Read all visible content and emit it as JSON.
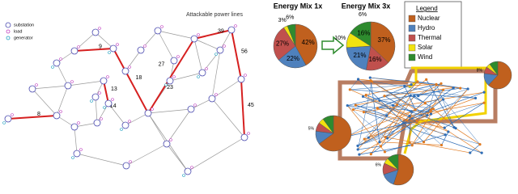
{
  "network": {
    "title": "Attackable power lines",
    "legend": [
      "substation",
      "load",
      "generator"
    ],
    "edge_labels": [
      9,
      27,
      39,
      56,
      18,
      23,
      13,
      45,
      8,
      14
    ]
  },
  "energy_mix": {
    "legend_title": "Legend",
    "legend": [
      {
        "name": "Nuclear",
        "color": "#c0601e"
      },
      {
        "name": "Hydro",
        "color": "#4f81bd"
      },
      {
        "name": "Thermal",
        "color": "#c0504d"
      },
      {
        "name": "Solar",
        "color": "#f2e30f"
      },
      {
        "name": "Wind",
        "color": "#2e8b2e"
      }
    ],
    "pies": [
      {
        "title": "Energy Mix 1x",
        "slices": [
          {
            "name": "Nuclear",
            "color": "#c0601e",
            "value": 42,
            "value_label": "42%"
          },
          {
            "name": "Hydro",
            "color": "#4f81bd",
            "value": 22,
            "value_label": "22%"
          },
          {
            "name": "Thermal",
            "color": "#c0504d",
            "value": 27,
            "value_label": "27%"
          },
          {
            "name": "Solar",
            "color": "#f2e30f",
            "value": 3,
            "value_label": "3%"
          },
          {
            "name": "Wind",
            "color": "#2e8b2e",
            "value": 6,
            "value_label": "6%"
          }
        ]
      },
      {
        "title": "Energy Mix 3x",
        "slices": [
          {
            "name": "Nuclear",
            "color": "#c0601e",
            "value": 37,
            "value_label": "37%"
          },
          {
            "name": "Thermal",
            "color": "#c0504d",
            "value": 16,
            "value_label": "16%"
          },
          {
            "name": "Hydro",
            "color": "#4f81bd",
            "value": 21,
            "value_label": "21%"
          },
          {
            "name": "Solar",
            "color": "#f2e30f",
            "value": 10,
            "value_label": "10%"
          },
          {
            "name": "Wind",
            "color": "#2e8b2e",
            "value": 16,
            "value_label": "16%"
          }
        ]
      }
    ],
    "annotation": "6%",
    "map_pies": [
      {
        "values": [
          62,
          15,
          8,
          5,
          10
        ],
        "value_label": "8%"
      },
      {
        "values": [
          65,
          12,
          8,
          5,
          10
        ],
        "value_label": "5%"
      },
      {
        "values": [
          55,
          15,
          12,
          6,
          12
        ],
        "value_label": "6%"
      }
    ]
  }
}
